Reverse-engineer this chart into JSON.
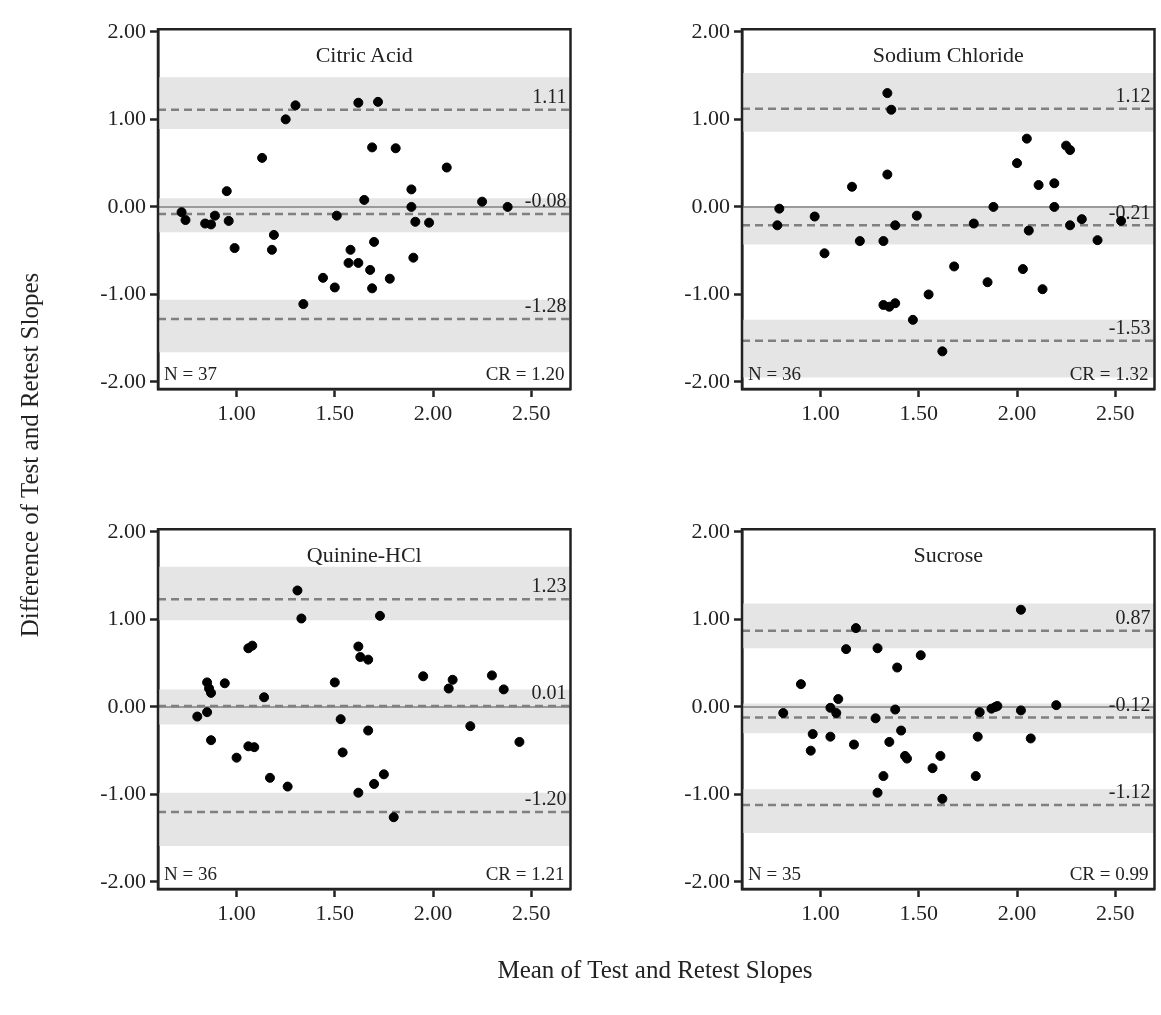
{
  "chart_data": [
    {
      "type": "scatter",
      "title": "Citric Acid",
      "ylabel": "Difference of Test and Retest Slopes",
      "color": "#000000",
      "marker": "circle",
      "x": [
        0.72,
        0.74,
        0.84,
        0.87,
        0.89,
        0.96,
        0.95,
        0.99,
        1.13,
        1.19,
        1.18,
        1.25,
        1.3,
        1.34,
        1.44,
        1.5,
        1.51,
        1.57,
        1.58,
        1.62,
        1.62,
        1.65,
        1.68,
        1.69,
        1.69,
        1.7,
        1.72,
        1.78,
        1.81,
        1.89,
        1.89,
        1.9,
        1.91,
        1.98,
        2.07,
        2.25,
        2.38
      ],
      "values": [
        -0.06,
        -0.15,
        -0.19,
        -0.2,
        -0.1,
        -0.16,
        0.18,
        -0.47,
        0.56,
        -0.32,
        -0.49,
        1.0,
        1.16,
        -1.11,
        -0.81,
        -0.92,
        -0.1,
        -0.64,
        -0.49,
        -0.64,
        1.19,
        0.08,
        -0.72,
        -0.93,
        0.68,
        -0.4,
        1.2,
        -0.82,
        0.67,
        0.2,
        0.0,
        -0.58,
        -0.17,
        -0.18,
        0.45,
        0.06,
        0.0
      ],
      "xlim": [
        0.6,
        2.7
      ],
      "ylim": [
        -2.08,
        2.03
      ],
      "xticks": [
        {
          "value": 1,
          "label": "1.00"
        },
        {
          "value": 1.5,
          "label": "1.50"
        },
        {
          "value": 2,
          "label": "2.00"
        },
        {
          "value": 2.5,
          "label": "2.50"
        }
      ],
      "yticks": [
        {
          "value": -2,
          "label": "-2.00"
        },
        {
          "value": -1,
          "label": "-1.00"
        },
        {
          "value": 0,
          "label": "0.00"
        },
        {
          "value": 1,
          "label": "1.00"
        },
        {
          "value": 2,
          "label": "2.00"
        }
      ],
      "bands": [
        {
          "axis": "y",
          "from": 0.89,
          "to": 1.48,
          "color": "#e5e5e5"
        },
        {
          "axis": "y",
          "from": -0.29,
          "to": 0.1,
          "color": "#e5e5e5"
        },
        {
          "axis": "y",
          "from": -1.66,
          "to": -1.06,
          "color": "#e5e5e5"
        }
      ],
      "ref_lines": [
        {
          "axis": "y",
          "value": 0,
          "color": "#808080",
          "line_style": "solid"
        },
        {
          "axis": "y",
          "value": 1.11,
          "label": "1.11",
          "color": "#808080",
          "line_style": "dashed"
        },
        {
          "axis": "y",
          "value": -0.08,
          "label": "-0.08",
          "color": "#808080",
          "line_style": "dashed"
        },
        {
          "axis": "y",
          "value": -1.28,
          "label": "-1.28",
          "color": "#808080",
          "line_style": "dashed"
        }
      ],
      "annotations": [
        "N = 37",
        "CR = 1.20"
      ]
    },
    {
      "type": "scatter",
      "title": "Sodium Chloride",
      "color": "#000000",
      "marker": "circle",
      "x": [
        0.79,
        0.78,
        0.97,
        1.16,
        1.02,
        1.2,
        1.32,
        1.34,
        1.36,
        1.34,
        1.38,
        1.32,
        1.35,
        1.38,
        1.47,
        1.49,
        1.55,
        1.62,
        1.68,
        1.78,
        1.85,
        1.88,
        2.0,
        2.05,
        2.03,
        2.06,
        2.11,
        2.13,
        2.19,
        2.19,
        2.25,
        2.27,
        2.27,
        2.33,
        2.41,
        2.53
      ],
      "values": [
        -0.02,
        -0.21,
        -0.11,
        0.23,
        -0.53,
        -0.39,
        -0.39,
        1.3,
        1.11,
        0.37,
        -0.21,
        -1.12,
        -1.14,
        -1.1,
        -1.29,
        -0.1,
        -1.0,
        -1.65,
        -0.68,
        -0.19,
        -0.86,
        0.0,
        0.5,
        0.78,
        -0.71,
        -0.27,
        0.25,
        -0.94,
        0.27,
        0.0,
        0.7,
        0.65,
        -0.21,
        -0.14,
        -0.38,
        -0.16
      ],
      "xlim": [
        0.6,
        2.7
      ],
      "ylim": [
        -2.08,
        2.03
      ],
      "xticks": [
        {
          "value": 1,
          "label": "1.00"
        },
        {
          "value": 1.5,
          "label": "1.50"
        },
        {
          "value": 2,
          "label": "2.00"
        },
        {
          "value": 2.5,
          "label": "2.50"
        }
      ],
      "yticks": [
        {
          "value": -2,
          "label": "-2.00"
        },
        {
          "value": -1,
          "label": "-1.00"
        },
        {
          "value": 0,
          "label": "0.00"
        },
        {
          "value": 1,
          "label": "1.00"
        },
        {
          "value": 2,
          "label": "2.00"
        }
      ],
      "bands": [
        {
          "axis": "y",
          "from": 0.86,
          "to": 1.53,
          "color": "#e5e5e5"
        },
        {
          "axis": "y",
          "from": -0.43,
          "to": 0.01,
          "color": "#e5e5e5"
        },
        {
          "axis": "y",
          "from": -1.95,
          "to": -1.29,
          "color": "#e5e5e5"
        }
      ],
      "ref_lines": [
        {
          "axis": "y",
          "value": 0,
          "color": "#808080",
          "line_style": "solid"
        },
        {
          "axis": "y",
          "value": 1.12,
          "label": "1.12",
          "color": "#808080",
          "line_style": "dashed"
        },
        {
          "axis": "y",
          "value": -0.21,
          "label": "-0.21",
          "color": "#808080",
          "line_style": "dashed"
        },
        {
          "axis": "y",
          "value": -1.53,
          "label": "-1.53",
          "color": "#808080",
          "line_style": "dashed"
        }
      ],
      "annotations": [
        "N = 36",
        "CR = 1.32"
      ]
    },
    {
      "type": "scatter",
      "title": "Quinine-HCl",
      "xlabel": "Mean of Test and Retest Slopes",
      "color": "#000000",
      "marker": "circle",
      "x": [
        0.8,
        0.85,
        0.85,
        0.86,
        0.87,
        0.87,
        0.94,
        1.0,
        1.06,
        1.08,
        1.06,
        1.09,
        1.14,
        1.17,
        1.26,
        1.31,
        1.33,
        1.5,
        1.53,
        1.54,
        1.62,
        1.63,
        1.67,
        1.67,
        1.62,
        1.7,
        1.75,
        1.73,
        1.8,
        1.95,
        2.08,
        2.1,
        2.19,
        2.3,
        2.36,
        2.44
      ],
      "values": [
        -0.11,
        -0.06,
        0.28,
        0.21,
        0.16,
        -0.38,
        0.27,
        -0.58,
        0.67,
        0.7,
        -0.45,
        -0.46,
        0.11,
        -0.81,
        -0.91,
        1.33,
        1.01,
        0.28,
        -0.14,
        -0.52,
        0.69,
        0.57,
        0.54,
        -0.27,
        -0.98,
        -0.88,
        -0.77,
        1.04,
        -1.26,
        0.35,
        0.21,
        0.31,
        -0.22,
        0.36,
        0.2,
        -0.4
      ],
      "xlim": [
        0.6,
        2.7
      ],
      "ylim": [
        -2.08,
        2.03
      ],
      "xticks": [
        {
          "value": 1,
          "label": "1.00"
        },
        {
          "value": 1.5,
          "label": "1.50"
        },
        {
          "value": 2,
          "label": "2.00"
        },
        {
          "value": 2.5,
          "label": "2.50"
        }
      ],
      "yticks": [
        {
          "value": -2,
          "label": "-2.00"
        },
        {
          "value": -1,
          "label": "-1.00"
        },
        {
          "value": 0,
          "label": "0.00"
        },
        {
          "value": 1,
          "label": "1.00"
        },
        {
          "value": 2,
          "label": "2.00"
        }
      ],
      "bands": [
        {
          "axis": "y",
          "from": 0.99,
          "to": 1.6,
          "color": "#e5e5e5"
        },
        {
          "axis": "y",
          "from": -0.2,
          "to": 0.2,
          "color": "#e5e5e5"
        },
        {
          "axis": "y",
          "from": -1.59,
          "to": -0.98,
          "color": "#e5e5e5"
        }
      ],
      "ref_lines": [
        {
          "axis": "y",
          "value": 0,
          "color": "#808080",
          "line_style": "solid"
        },
        {
          "axis": "y",
          "value": 1.23,
          "label": "1.23",
          "color": "#808080",
          "line_style": "dashed"
        },
        {
          "axis": "y",
          "value": 0.01,
          "label": "0.01",
          "color": "#808080",
          "line_style": "dashed"
        },
        {
          "axis": "y",
          "value": -1.2,
          "label": "-1.20",
          "color": "#808080",
          "line_style": "dashed"
        }
      ],
      "annotations": [
        "N = 36",
        "CR = 1.21"
      ]
    },
    {
      "type": "scatter",
      "title": "Sucrose",
      "color": "#000000",
      "marker": "circle",
      "x": [
        0.81,
        0.9,
        0.96,
        0.95,
        1.05,
        1.05,
        1.08,
        1.09,
        1.13,
        1.17,
        1.18,
        1.28,
        1.29,
        1.29,
        1.32,
        1.35,
        1.38,
        1.39,
        1.41,
        1.43,
        1.44,
        1.51,
        1.57,
        1.61,
        1.62,
        1.79,
        1.8,
        1.81,
        1.87,
        1.89,
        1.9,
        2.02,
        2.02,
        2.07,
        2.2
      ],
      "values": [
        -0.07,
        0.26,
        -0.31,
        -0.5,
        -0.34,
        -0.01,
        -0.07,
        0.09,
        0.66,
        -0.43,
        0.9,
        -0.13,
        0.67,
        -0.98,
        -0.79,
        -0.4,
        -0.03,
        0.45,
        -0.27,
        -0.56,
        -0.59,
        0.59,
        -0.7,
        -0.56,
        -1.05,
        -0.79,
        -0.34,
        -0.06,
        -0.02,
        0.0,
        0.01,
        1.11,
        -0.04,
        -0.36,
        0.02
      ],
      "xlim": [
        0.6,
        2.7
      ],
      "ylim": [
        -2.08,
        2.03
      ],
      "xticks": [
        {
          "value": 1,
          "label": "1.00"
        },
        {
          "value": 1.5,
          "label": "1.50"
        },
        {
          "value": 2,
          "label": "2.00"
        },
        {
          "value": 2.5,
          "label": "2.50"
        }
      ],
      "yticks": [
        {
          "value": -2,
          "label": "-2.00"
        },
        {
          "value": -1,
          "label": "-1.00"
        },
        {
          "value": 0,
          "label": "0.00"
        },
        {
          "value": 1,
          "label": "1.00"
        },
        {
          "value": 2,
          "label": "2.00"
        }
      ],
      "bands": [
        {
          "axis": "y",
          "from": 0.67,
          "to": 1.18,
          "color": "#e5e5e5"
        },
        {
          "axis": "y",
          "from": -0.3,
          "to": 0.04,
          "color": "#e5e5e5"
        },
        {
          "axis": "y",
          "from": -1.44,
          "to": -0.94,
          "color": "#e5e5e5"
        }
      ],
      "ref_lines": [
        {
          "axis": "y",
          "value": 0,
          "color": "#808080",
          "line_style": "solid"
        },
        {
          "axis": "y",
          "value": 0.87,
          "label": "0.87",
          "color": "#808080",
          "line_style": "dashed"
        },
        {
          "axis": "y",
          "value": -0.12,
          "label": "-0.12",
          "color": "#808080",
          "line_style": "dashed"
        },
        {
          "axis": "y",
          "value": -1.12,
          "label": "-1.12",
          "color": "#808080",
          "line_style": "dashed"
        }
      ],
      "annotations": [
        "N = 35",
        "CR = 0.99"
      ]
    }
  ]
}
